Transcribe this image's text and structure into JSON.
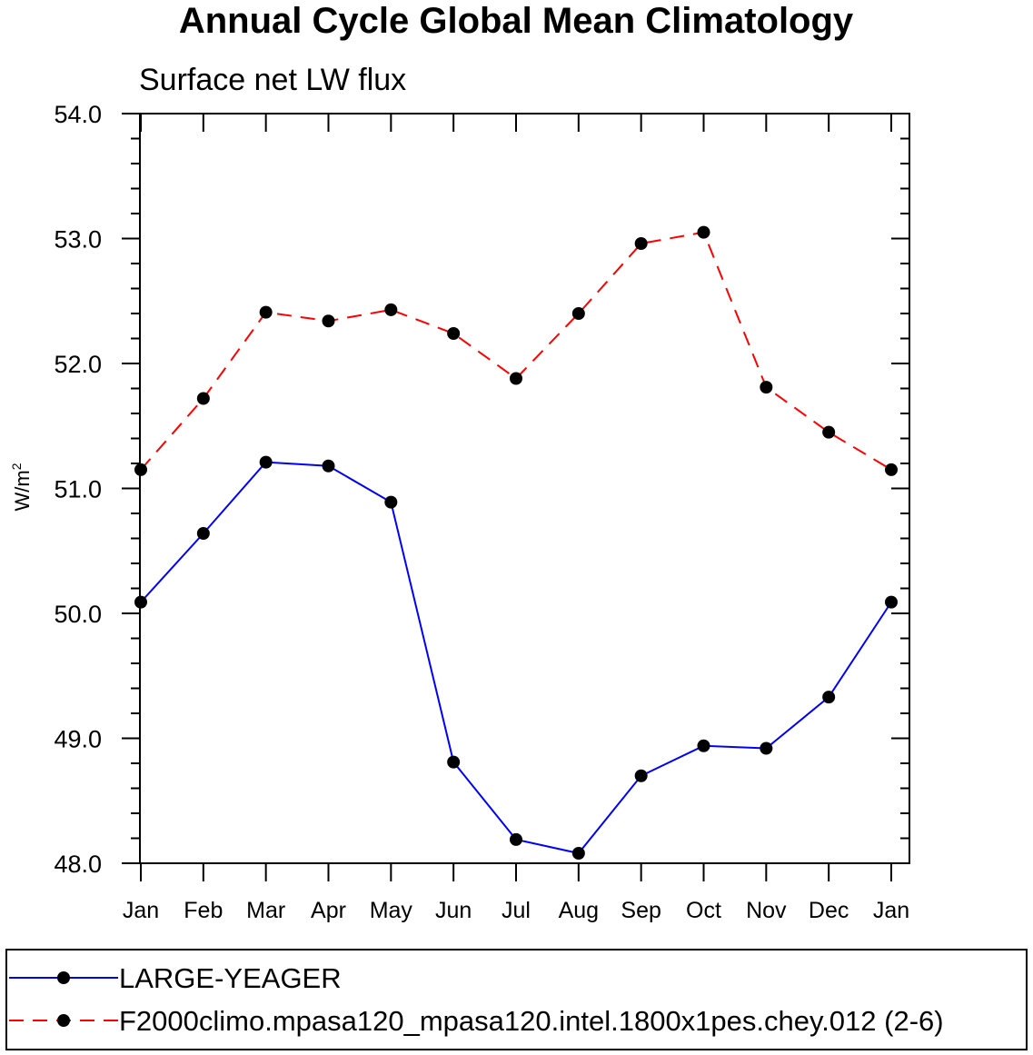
{
  "chart_data": {
    "type": "line",
    "title": "Annual Cycle Global Mean Climatology",
    "subtitle": "Surface net LW flux",
    "xlabel": "",
    "ylabel": "W/m",
    "ylabel_superscript": "2",
    "categories": [
      "Jan",
      "Feb",
      "Mar",
      "Apr",
      "May",
      "Jun",
      "Jul",
      "Aug",
      "Sep",
      "Oct",
      "Nov",
      "Dec",
      "Jan"
    ],
    "ylim": [
      48.0,
      54.0
    ],
    "yticks": [
      "48.0",
      "49.0",
      "50.0",
      "51.0",
      "52.0",
      "53.0",
      "54.0"
    ],
    "grid": false,
    "legend_position": "bottom",
    "series": [
      {
        "name": "LARGE-YEAGER",
        "color": "#0000ff",
        "dash": "solid",
        "marker": "circle",
        "values": [
          50.09,
          50.64,
          51.21,
          51.18,
          50.89,
          48.81,
          48.19,
          48.08,
          48.7,
          48.94,
          48.92,
          49.33,
          50.09
        ]
      },
      {
        "name": "F2000climo.mpasa120_mpasa120.intel.1800x1pes.chey.012 (2-6)",
        "color": "#ff0000",
        "dash": "dashed",
        "marker": "circle",
        "values": [
          51.15,
          51.72,
          52.41,
          52.34,
          52.43,
          52.24,
          51.88,
          52.4,
          52.96,
          53.05,
          51.81,
          51.45,
          51.15
        ]
      }
    ]
  }
}
